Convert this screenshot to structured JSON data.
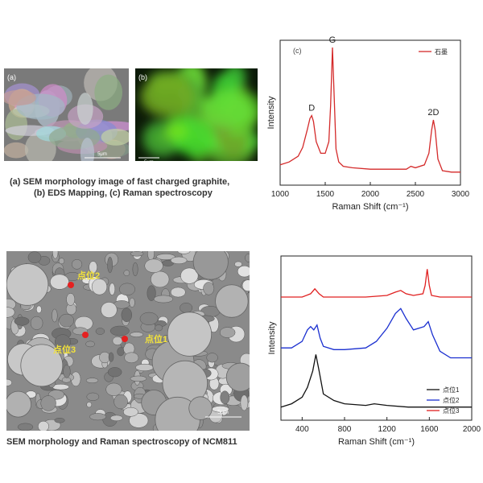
{
  "figure1": {
    "images": [
      {
        "label": "(a)",
        "scale": "5μm"
      },
      {
        "label": "(b)",
        "scale": "5μm"
      }
    ],
    "caption": [
      "(a) SEM morphology image of fast charged graphite,",
      "(b) EDS Mapping, (c) Raman spectroscopy"
    ]
  },
  "chart_data": [
    {
      "type": "line",
      "panel_label": "(c)",
      "x_label": "Raman Shift (cm⁻¹)",
      "y_label": "Intensity",
      "xlim": [
        1000,
        3000
      ],
      "xticks": [
        1000,
        1500,
        2000,
        2500,
        3000
      ],
      "ylim": [
        0,
        100
      ],
      "legend": "upper right",
      "annotations": [
        {
          "text": "D",
          "x": 1350,
          "y": 48
        },
        {
          "text": "G",
          "x": 1580,
          "y": 95
        },
        {
          "text": "2D",
          "x": 2700,
          "y": 45
        }
      ],
      "x": [
        1000,
        1100,
        1200,
        1250,
        1300,
        1330,
        1350,
        1370,
        1400,
        1450,
        1500,
        1540,
        1560,
        1580,
        1600,
        1620,
        1650,
        1700,
        1800,
        2000,
        2200,
        2400,
        2450,
        2500,
        2600,
        2650,
        2680,
        2700,
        2720,
        2750,
        2800,
        2900,
        3000
      ],
      "series": [
        {
          "name": "石墨",
          "color": "#d42a2a",
          "values": [
            14,
            16,
            20,
            26,
            38,
            46,
            48,
            44,
            30,
            22,
            22,
            30,
            55,
            95,
            60,
            25,
            16,
            13,
            12,
            11,
            11,
            11,
            13,
            12,
            14,
            22,
            38,
            45,
            38,
            18,
            10,
            9,
            9
          ]
        }
      ]
    },
    {
      "type": "line",
      "x_label": "Raman Shift (cm⁻¹)",
      "y_label": "Intensity",
      "xlim": [
        200,
        2000
      ],
      "xticks": [
        400,
        800,
        1200,
        1600,
        2000
      ],
      "ylim": [
        0,
        100
      ],
      "legend": "lower right",
      "series": [
        {
          "name": "点位1",
          "color": "#111111",
          "x": [
            200,
            300,
            400,
            450,
            500,
            530,
            560,
            600,
            700,
            800,
            1000,
            1080,
            1200,
            1400,
            1600,
            1800,
            2000
          ],
          "values": [
            8,
            10,
            14,
            20,
            30,
            40,
            30,
            16,
            12,
            10,
            9,
            10,
            9,
            8,
            8,
            8,
            8
          ]
        },
        {
          "name": "点位2",
          "color": "#1a2fd0",
          "x": [
            200,
            300,
            400,
            450,
            480,
            510,
            540,
            570,
            600,
            700,
            800,
            1000,
            1100,
            1200,
            1280,
            1330,
            1380,
            1450,
            1550,
            1590,
            1630,
            1700,
            1800,
            2000
          ],
          "values": [
            44,
            44,
            48,
            55,
            57,
            55,
            58,
            50,
            45,
            43,
            43,
            44,
            48,
            56,
            65,
            68,
            62,
            55,
            57,
            60,
            52,
            42,
            38,
            38
          ]
        },
        {
          "name": "点位3",
          "color": "#e02020",
          "x": [
            200,
            400,
            480,
            520,
            560,
            600,
            800,
            1000,
            1200,
            1280,
            1330,
            1380,
            1450,
            1540,
            1560,
            1580,
            1600,
            1620,
            1700,
            2000
          ],
          "values": [
            75,
            75,
            77,
            80,
            77,
            75,
            75,
            75,
            76,
            78,
            79,
            77,
            76,
            77,
            82,
            92,
            82,
            76,
            75,
            75
          ]
        }
      ]
    }
  ],
  "figure2": {
    "points": [
      "点位2",
      "点位3",
      "点位1"
    ],
    "scale": "5μm",
    "caption": "SEM morphology and Raman spectroscopy of NCM811"
  }
}
